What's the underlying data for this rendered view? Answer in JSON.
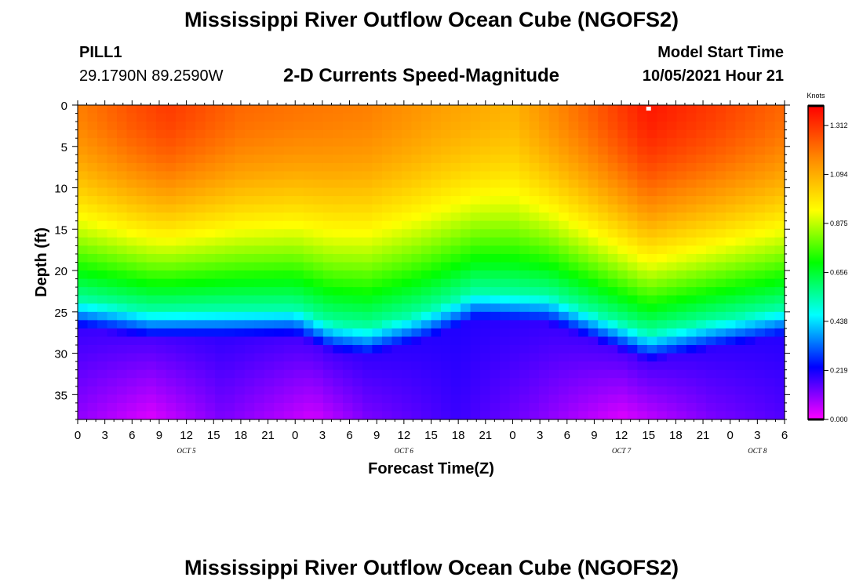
{
  "header": {
    "title": "Mississippi River Outflow Ocean Cube (NGOFS2)",
    "station_name": "PILL1",
    "station_coords": "29.1790N  89.2590W",
    "subtitle": "2-D Currents Speed-Magnitude",
    "model_label": "Model Start Time",
    "model_time": "10/05/2021 Hour 21"
  },
  "footer": {
    "title": "Mississippi River Outflow Ocean Cube (NGOFS2)"
  },
  "chart_data": {
    "type": "heatmap",
    "title": "2-D Currents Speed-Magnitude",
    "xlabel": "Forecast Time(Z)",
    "ylabel": "Depth (ft)",
    "x_range_hours": [
      0,
      78
    ],
    "x_tick_step_hours": 3,
    "x_tick_labels": [
      "0",
      "3",
      "6",
      "9",
      "12",
      "15",
      "18",
      "21",
      "0",
      "3",
      "6",
      "9",
      "12",
      "15",
      "18",
      "21",
      "0",
      "3",
      "6",
      "9",
      "12",
      "15",
      "18",
      "21",
      "0",
      "3",
      "6"
    ],
    "day_labels": [
      {
        "label": "OCT 5",
        "hour": 12
      },
      {
        "label": "OCT 6",
        "hour": 36
      },
      {
        "label": "OCT 7",
        "hour": 60
      },
      {
        "label": "OCT 8",
        "hour": 75
      }
    ],
    "y_range": [
      0,
      38
    ],
    "y_reversed": true,
    "y_ticks": [
      0,
      5,
      10,
      15,
      20,
      25,
      30,
      35
    ],
    "y_tick_labels": [
      "0",
      "5",
      "10",
      "15",
      "20",
      "25",
      "30",
      "35"
    ],
    "colorbar": {
      "title": "Knots",
      "min": 0.0,
      "max": 1.4,
      "tick_values": [
        0.0,
        0.219,
        0.438,
        0.656,
        0.875,
        1.094,
        1.312
      ],
      "tick_labels": [
        "0.000",
        "0.219",
        "0.438",
        "0.656",
        "0.875",
        "1.094",
        "1.312"
      ],
      "colors": [
        "#ff00ff",
        "#0000ff",
        "#00ffff",
        "#00ff00",
        "#ffff00",
        "#ff8800",
        "#ff0000"
      ]
    },
    "grid": false,
    "marker_point": {
      "hour": 63,
      "depth": 0.2
    },
    "surface_speed_knots": [
      {
        "hour": 0,
        "value": 1.18
      },
      {
        "hour": 6,
        "value": 1.26
      },
      {
        "hour": 10,
        "value": 1.3
      },
      {
        "hour": 18,
        "value": 1.22
      },
      {
        "hour": 24,
        "value": 1.2
      },
      {
        "hour": 32,
        "value": 1.18
      },
      {
        "hour": 40,
        "value": 1.12
      },
      {
        "hour": 48,
        "value": 1.08
      },
      {
        "hour": 56,
        "value": 1.22
      },
      {
        "hour": 63,
        "value": 1.36
      },
      {
        "hour": 70,
        "value": 1.3
      },
      {
        "hour": 78,
        "value": 1.22
      }
    ],
    "shear_layer_depth_ft": [
      {
        "hour": 0,
        "value": 23.5
      },
      {
        "hour": 8,
        "value": 24.8
      },
      {
        "hour": 16,
        "value": 24.6
      },
      {
        "hour": 24,
        "value": 24.5
      },
      {
        "hour": 28,
        "value": 26.3
      },
      {
        "hour": 32,
        "value": 26.8
      },
      {
        "hour": 38,
        "value": 25.0
      },
      {
        "hour": 44,
        "value": 22.5
      },
      {
        "hour": 52,
        "value": 23.0
      },
      {
        "hour": 58,
        "value": 25.5
      },
      {
        "hour": 63,
        "value": 27.5
      },
      {
        "hour": 70,
        "value": 26.0
      },
      {
        "hour": 78,
        "value": 24.5
      }
    ],
    "bottom_speed_knots": [
      {
        "hour": 0,
        "value": 0.1
      },
      {
        "hour": 8,
        "value": 0.03
      },
      {
        "hour": 16,
        "value": 0.12
      },
      {
        "hour": 26,
        "value": 0.04
      },
      {
        "hour": 32,
        "value": 0.12
      },
      {
        "hour": 42,
        "value": 0.18
      },
      {
        "hour": 50,
        "value": 0.12
      },
      {
        "hour": 60,
        "value": 0.03
      },
      {
        "hour": 70,
        "value": 0.12
      },
      {
        "hour": 78,
        "value": 0.16
      }
    ]
  }
}
